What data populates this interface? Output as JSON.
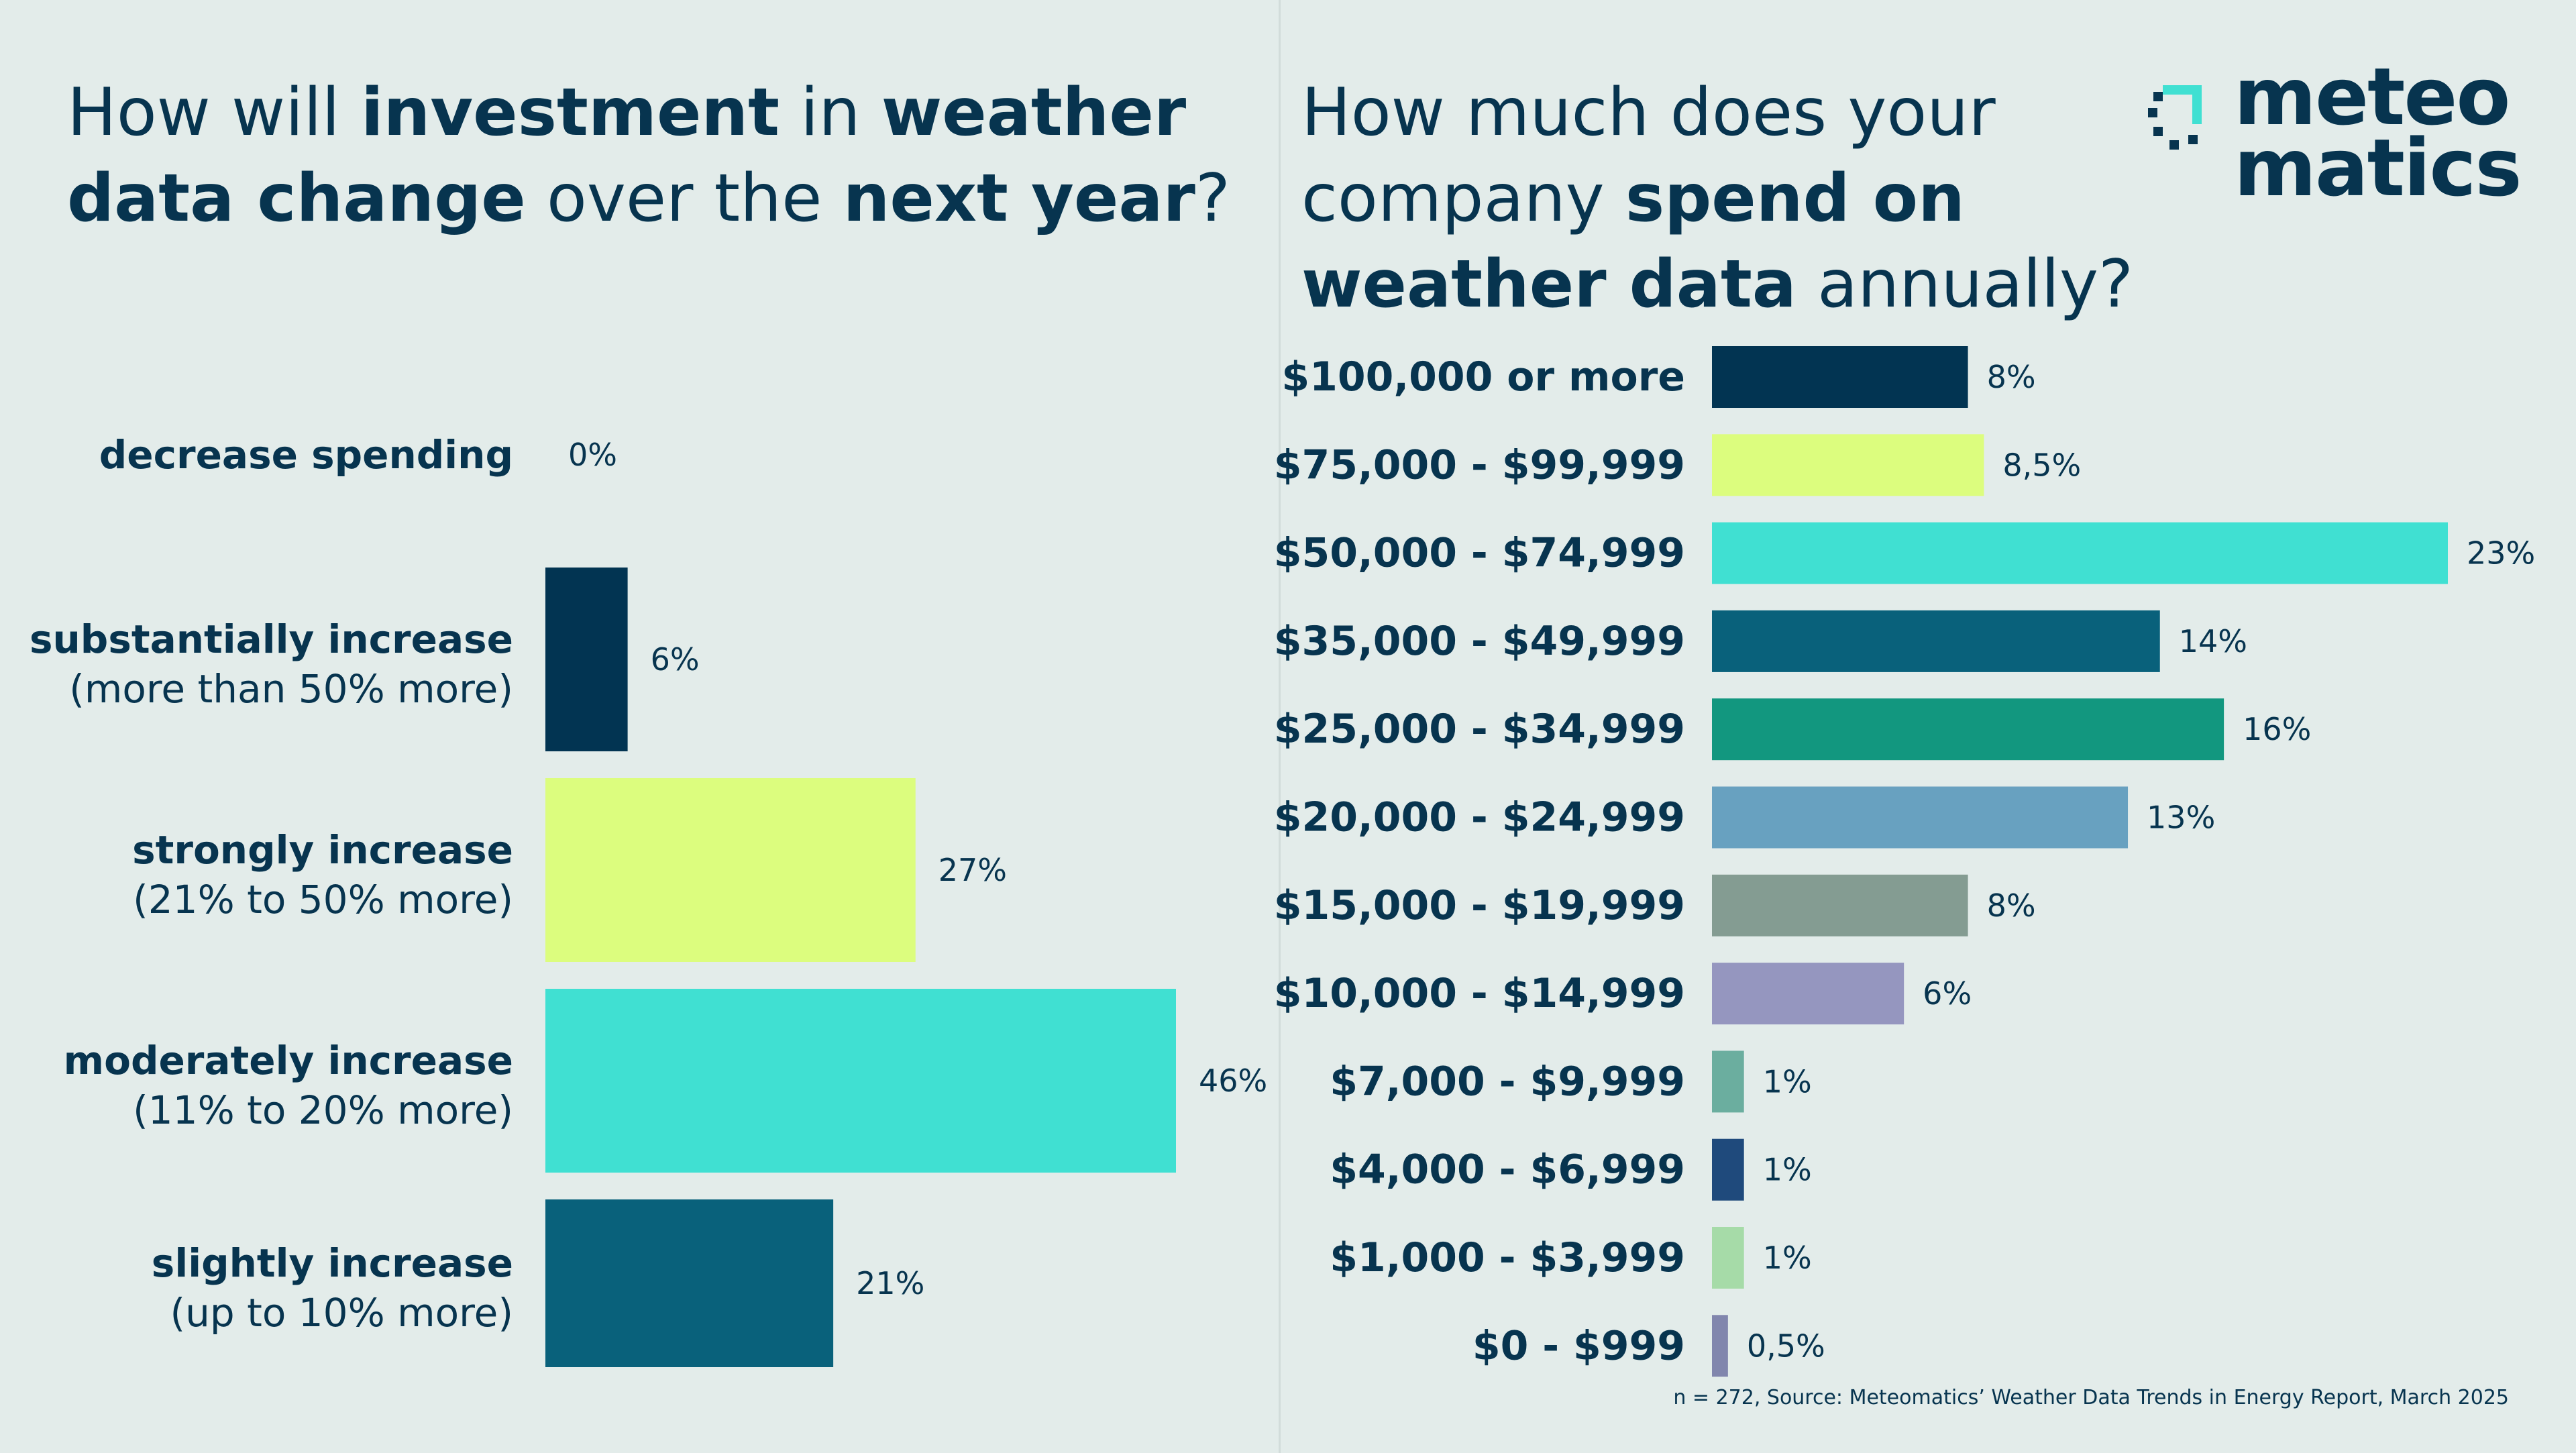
{
  "left_title": {
    "parts": [
      {
        "text": "How will ",
        "bold": false
      },
      {
        "text": "investment",
        "bold": true
      },
      {
        "text": " in ",
        "bold": false
      },
      {
        "text": "weather data change",
        "bold": true
      },
      {
        "text": " over the ",
        "bold": false
      },
      {
        "text": "next year",
        "bold": true
      },
      {
        "text": "?",
        "bold": false
      }
    ]
  },
  "right_title": {
    "parts": [
      {
        "text": "How much does your company ",
        "bold": false
      },
      {
        "text": "spend on weather data",
        "bold": true
      },
      {
        "text": " annually?",
        "bold": false
      }
    ]
  },
  "logo": {
    "line1": "meteo",
    "line2": "matics"
  },
  "footnote": "n = 272, Source: Meteomatics’ Weather Data Trends in Energy Report, March 2025",
  "colors": {
    "background": "#e3ecea",
    "text": "#07344f",
    "navy": "#023452",
    "lime": "#dcfd7e",
    "turquoise": "#40e0d2",
    "petrol": "#09617b",
    "green": "#12977f",
    "steel_blue": "#68a1c0",
    "sage": "#849c92",
    "lavender": "#9596bf",
    "mint": "#6bae9f",
    "royal": "#1f4a7c",
    "pale_green": "#a6dba8",
    "slate": "#8186ad"
  },
  "chart_data": [
    {
      "type": "bar",
      "orientation": "horizontal",
      "title": "How will investment in weather data change over the next year?",
      "categories": [
        {
          "label": "decrease spending",
          "sublabel": ""
        },
        {
          "label": "substantially increase",
          "sublabel": "(more than 50% more)"
        },
        {
          "label": "strongly increase",
          "sublabel": "(21% to 50% more)"
        },
        {
          "label": "moderately increase",
          "sublabel": "(11% to 20% more)"
        },
        {
          "label": "slightly increase",
          "sublabel": "(up to 10% more)"
        }
      ],
      "values": [
        0,
        6,
        27,
        46,
        21
      ],
      "value_labels": [
        "0%",
        "6%",
        "27%",
        "46%",
        "21%"
      ],
      "colors": [
        "#023452",
        "#023452",
        "#dcfd7e",
        "#40e0d2",
        "#09617b"
      ],
      "unit": "%",
      "xlim": [
        0,
        46
      ]
    },
    {
      "type": "bar",
      "orientation": "horizontal",
      "title": "How much does your company spend on weather data annually?",
      "categories": [
        "$100,000 or more",
        "$75,000 - $99,999",
        "$50,000 - $74,999",
        "$35,000 - $49,999",
        "$25,000 - $34,999",
        "$20,000 - $24,999",
        "$15,000 - $19,999",
        "$10,000 - $14,999",
        "$7,000 - $9,999",
        "$4,000 - $6,999",
        "$1,000 - $3,999",
        "$0 - $999"
      ],
      "values": [
        8,
        8.5,
        23,
        14,
        16,
        13,
        8,
        6,
        1,
        1,
        1,
        0.5
      ],
      "value_labels": [
        "8%",
        "8,5%",
        "23%",
        "14%",
        "16%",
        "13%",
        "8%",
        "6%",
        "1%",
        "1%",
        "1%",
        "0,5%"
      ],
      "colors": [
        "#023452",
        "#dcfd7e",
        "#40e0d2",
        "#09617b",
        "#12977f",
        "#68a1c0",
        "#849c92",
        "#9596bf",
        "#6bae9f",
        "#1f4a7c",
        "#a6dba8",
        "#8186ad"
      ],
      "unit": "%",
      "xlim": [
        0,
        23
      ]
    }
  ]
}
